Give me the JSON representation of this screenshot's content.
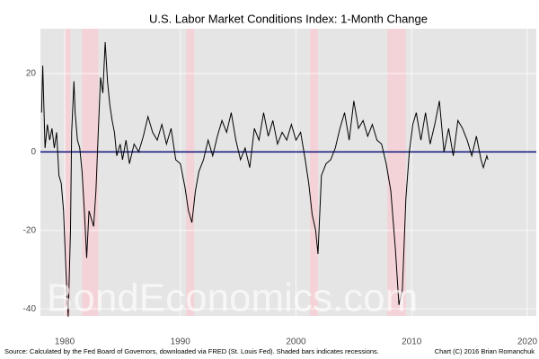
{
  "chart_data": {
    "type": "line",
    "title": "U.S. Labor Market Conditions Index: 1-Month Change",
    "watermark": "BondEconomics.com",
    "source": "Source: Calculated by the Fed Board of Governors, downloaded via FRED (St. Louis Fed). Shaded bars indicates recessions.",
    "credit": "Chart (C) 2016 Brian Romanchuk",
    "x": [
      1978.0,
      1978.1,
      1978.3,
      1978.5,
      1978.7,
      1978.9,
      1979.1,
      1979.3,
      1979.5,
      1979.7,
      1979.9,
      1980.1,
      1980.3,
      1980.5,
      1980.6,
      1980.8,
      1980.9,
      1981.1,
      1981.3,
      1981.5,
      1981.7,
      1981.9,
      1982.1,
      1982.3,
      1982.5,
      1982.7,
      1982.9,
      1983.1,
      1983.3,
      1983.5,
      1983.7,
      1983.9,
      1984.1,
      1984.3,
      1984.5,
      1984.8,
      1985.0,
      1985.3,
      1985.6,
      1986.0,
      1986.4,
      1986.8,
      1987.2,
      1987.6,
      1988.0,
      1988.4,
      1988.8,
      1989.2,
      1989.6,
      1990.0,
      1990.4,
      1990.7,
      1991.0,
      1991.3,
      1991.6,
      1992.0,
      1992.4,
      1992.8,
      1993.2,
      1993.6,
      1994.0,
      1994.4,
      1994.8,
      1995.2,
      1995.6,
      1996.0,
      1996.4,
      1996.8,
      1997.2,
      1997.6,
      1998.0,
      1998.4,
      1998.8,
      1999.2,
      1999.6,
      2000.0,
      2000.4,
      2000.8,
      2001.1,
      2001.4,
      2001.7,
      2001.9,
      2002.2,
      2002.6,
      2003.0,
      2003.4,
      2003.8,
      2004.2,
      2004.6,
      2005.0,
      2005.4,
      2005.8,
      2006.2,
      2006.6,
      2007.0,
      2007.4,
      2007.8,
      2008.2,
      2008.6,
      2008.9,
      2009.2,
      2009.5,
      2009.8,
      2010.1,
      2010.4,
      2010.8,
      2011.2,
      2011.6,
      2012.0,
      2012.4,
      2012.8,
      2013.2,
      2013.6,
      2014.0,
      2014.4,
      2014.8,
      2015.2,
      2015.6,
      2016.0,
      2016.2,
      2016.5,
      2016.6
    ],
    "series": [
      {
        "color": "#000000",
        "values": [
          10,
          22,
          1,
          7,
          3,
          6,
          1,
          5,
          -6,
          -8,
          -15,
          -30,
          -42,
          -20,
          5,
          18,
          10,
          3,
          1,
          -5,
          -15,
          -27,
          -15,
          -17,
          -19,
          -10,
          5,
          19,
          15,
          28,
          18,
          12,
          8,
          5,
          -1,
          2,
          -2,
          3,
          -3,
          2,
          0,
          4,
          9,
          5,
          3,
          7,
          2,
          6,
          -2,
          -3,
          -9,
          -15,
          -18,
          -10,
          -5,
          -2,
          3,
          -1,
          4,
          8,
          5,
          10,
          3,
          -2,
          1,
          -4,
          6,
          3,
          10,
          4,
          8,
          2,
          5,
          3,
          7,
          3,
          5,
          -2,
          -8,
          -16,
          -20,
          -26,
          -6,
          -3,
          -2,
          1,
          6,
          10,
          3,
          13,
          6,
          8,
          4,
          7,
          3,
          2,
          -3,
          -10,
          -25,
          -39,
          -35,
          -12,
          0,
          7,
          10,
          3,
          10,
          2,
          7,
          13,
          0,
          6,
          -1,
          8,
          6,
          3,
          -1,
          4,
          -2,
          -4,
          -1,
          -2
        ]
      }
    ],
    "shaded_regions": [
      [
        1980.0,
        1980.5
      ],
      [
        1981.5,
        1982.9
      ],
      [
        1990.5,
        1991.2
      ],
      [
        2001.2,
        2001.9
      ],
      [
        2007.9,
        2009.5
      ]
    ],
    "shade_color": "#f4d3d8",
    "reference_line": {
      "value": 0,
      "color": "#2e2e8a"
    },
    "xlim": [
      1977.9,
      2020.78
    ],
    "xticks": [
      1980,
      1990,
      2000,
      2010,
      2020
    ],
    "ylim": [
      -41.8,
      31.4
    ],
    "yticks": [
      -40,
      -20,
      0,
      20
    ],
    "grid": true
  }
}
